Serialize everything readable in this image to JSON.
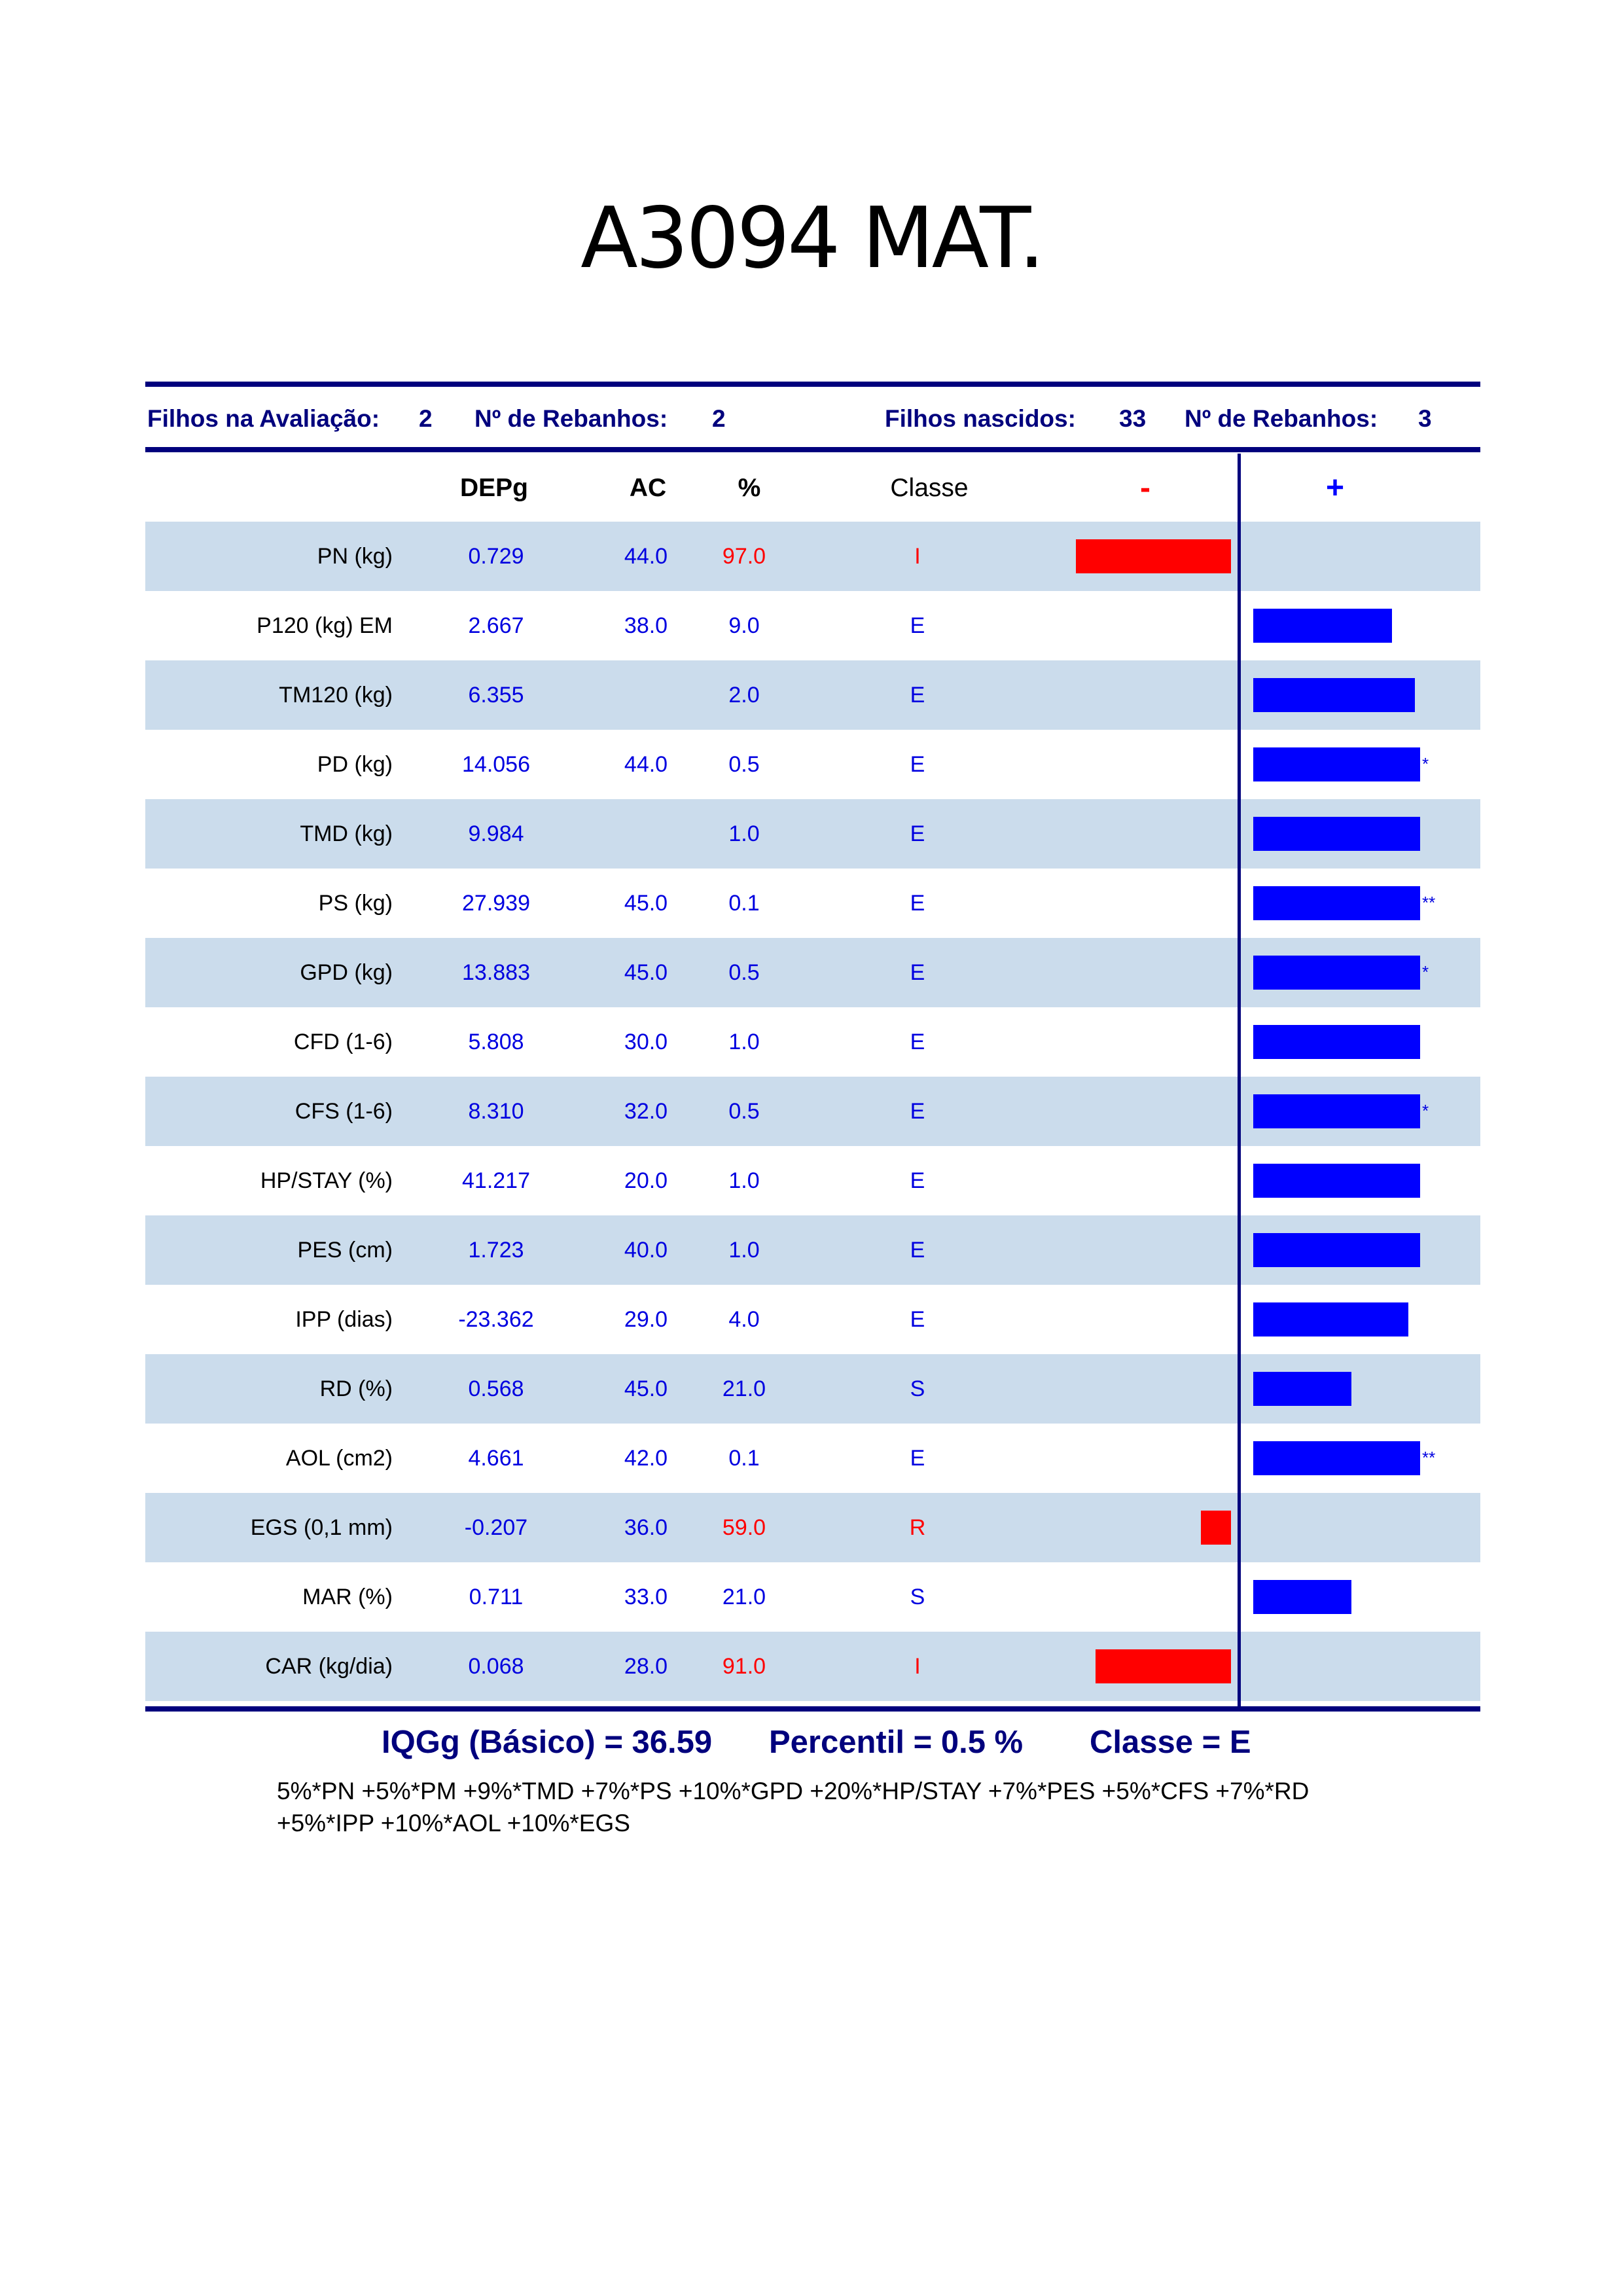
{
  "title": "A3094 MAT.",
  "header": {
    "filhos_avaliacao_label": "Filhos na Avaliação:",
    "filhos_avaliacao_value": "2",
    "rebanhos1_label": "Nº de Rebanhos:",
    "rebanhos1_value": "2",
    "filhos_nascidos_label": "Filhos nascidos:",
    "filhos_nascidos_value": "33",
    "rebanhos2_label": "Nº de Rebanhos:",
    "rebanhos2_value": "3"
  },
  "columns": {
    "depg": "DEPg",
    "ac": "AC",
    "pct": "%",
    "classe": "Classe",
    "minus": "-",
    "plus": "+"
  },
  "colors": {
    "navy": "#00007d",
    "blue": "#0000ff",
    "red": "#ff0000",
    "shade": "#cbdcec"
  },
  "rows": [
    {
      "name": "PN (kg)",
      "depg": "0.729",
      "ac": "44.0",
      "pct": "97.0",
      "classe": "I",
      "pct_red": true,
      "bar_side": "neg",
      "bar_level": 0.93,
      "stars": ""
    },
    {
      "name": "P120 (kg) EM",
      "depg": "2.667",
      "ac": "38.0",
      "pct": "9.0",
      "classe": "E",
      "pct_red": false,
      "bar_side": "pos",
      "bar_level": 0.83,
      "stars": ""
    },
    {
      "name": "TM120 (kg)",
      "depg": "6.355",
      "ac": "",
      "pct": "2.0",
      "classe": "E",
      "pct_red": false,
      "bar_side": "pos",
      "bar_level": 0.97,
      "stars": ""
    },
    {
      "name": "PD (kg)",
      "depg": "14.056",
      "ac": "44.0",
      "pct": "0.5",
      "classe": "E",
      "pct_red": false,
      "bar_side": "pos",
      "bar_level": 1.0,
      "stars": "*"
    },
    {
      "name": "TMD (kg)",
      "depg": "9.984",
      "ac": "",
      "pct": "1.0",
      "classe": "E",
      "pct_red": false,
      "bar_side": "pos",
      "bar_level": 1.0,
      "stars": ""
    },
    {
      "name": "PS (kg)",
      "depg": "27.939",
      "ac": "45.0",
      "pct": "0.1",
      "classe": "E",
      "pct_red": false,
      "bar_side": "pos",
      "bar_level": 1.0,
      "stars": "**"
    },
    {
      "name": "GPD (kg)",
      "depg": "13.883",
      "ac": "45.0",
      "pct": "0.5",
      "classe": "E",
      "pct_red": false,
      "bar_side": "pos",
      "bar_level": 1.0,
      "stars": "*"
    },
    {
      "name": "CFD (1-6)",
      "depg": "5.808",
      "ac": "30.0",
      "pct": "1.0",
      "classe": "E",
      "pct_red": false,
      "bar_side": "pos",
      "bar_level": 1.0,
      "stars": ""
    },
    {
      "name": "CFS (1-6)",
      "depg": "8.310",
      "ac": "32.0",
      "pct": "0.5",
      "classe": "E",
      "pct_red": false,
      "bar_side": "pos",
      "bar_level": 1.0,
      "stars": "*"
    },
    {
      "name": "HP/STAY (%)",
      "depg": "41.217",
      "ac": "20.0",
      "pct": "1.0",
      "classe": "E",
      "pct_red": false,
      "bar_side": "pos",
      "bar_level": 1.0,
      "stars": ""
    },
    {
      "name": "PES (cm)",
      "depg": "1.723",
      "ac": "40.0",
      "pct": "1.0",
      "classe": "E",
      "pct_red": false,
      "bar_side": "pos",
      "bar_level": 1.0,
      "stars": ""
    },
    {
      "name": "IPP (dias)",
      "depg": "-23.362",
      "ac": "29.0",
      "pct": "4.0",
      "classe": "E",
      "pct_red": false,
      "bar_side": "pos",
      "bar_level": 0.93,
      "stars": ""
    },
    {
      "name": "RD (%)",
      "depg": "0.568",
      "ac": "45.0",
      "pct": "21.0",
      "classe": "S",
      "pct_red": false,
      "bar_side": "pos",
      "bar_level": 0.59,
      "stars": ""
    },
    {
      "name": "AOL (cm2)",
      "depg": "4.661",
      "ac": "42.0",
      "pct": "0.1",
      "classe": "E",
      "pct_red": false,
      "bar_side": "pos",
      "bar_level": 1.0,
      "stars": "**"
    },
    {
      "name": "EGS (0,1 mm)",
      "depg": "-0.207",
      "ac": "36.0",
      "pct": "59.0",
      "classe": "R",
      "pct_red": true,
      "bar_side": "neg",
      "bar_level": 0.18,
      "stars": ""
    },
    {
      "name": "MAR (%)",
      "depg": "0.711",
      "ac": "33.0",
      "pct": "21.0",
      "classe": "S",
      "pct_red": false,
      "bar_side": "pos",
      "bar_level": 0.59,
      "stars": ""
    },
    {
      "name": "CAR (kg/dia)",
      "depg": "0.068",
      "ac": "28.0",
      "pct": "91.0",
      "classe": "I",
      "pct_red": true,
      "bar_side": "neg",
      "bar_level": 0.81,
      "stars": ""
    }
  ],
  "summary": {
    "iqgg": "IQGg (Básico) = 36.59",
    "percentil": "Percentil = 0.5 %",
    "classe": "Classe = E"
  },
  "formula": "5%*PN +5%*PM +9%*TMD +7%*PS +10%*GPD +20%*HP/STAY +7%*PES +5%*CFS +7%*RD +5%*IPP +10%*AOL +10%*EGS"
}
